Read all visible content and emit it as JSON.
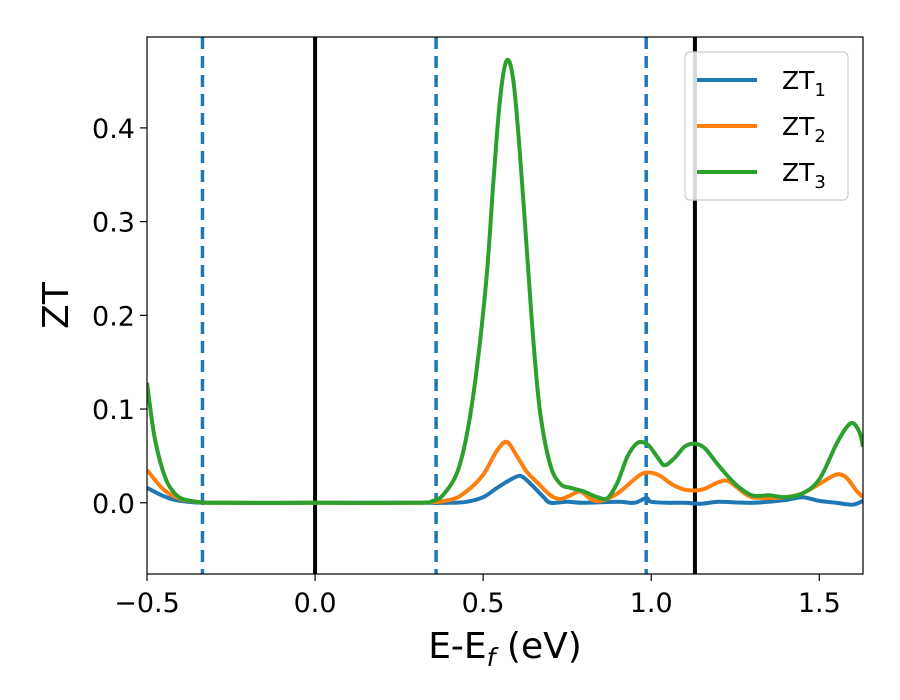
{
  "chart_data": {
    "type": "line",
    "xlabel": {
      "main": "E-E",
      "sub": "f",
      "unit": " (eV)"
    },
    "ylabel": "ZT",
    "xlim": [
      -0.5,
      1.63
    ],
    "ylim": [
      -0.076,
      0.497
    ],
    "grid": false,
    "legend_position": "top-right",
    "x_ticks": [
      {
        "value": -0.5,
        "label": "−0.5"
      },
      {
        "value": 0.0,
        "label": "0.0"
      },
      {
        "value": 0.5,
        "label": "0.5"
      },
      {
        "value": 1.0,
        "label": "1.0"
      },
      {
        "value": 1.5,
        "label": "1.5"
      }
    ],
    "y_ticks": [
      {
        "value": 0.0,
        "label": "0.0"
      },
      {
        "value": 0.1,
        "label": "0.1"
      },
      {
        "value": 0.2,
        "label": "0.2"
      },
      {
        "value": 0.3,
        "label": "0.3"
      },
      {
        "value": 0.4,
        "label": "0.4"
      }
    ],
    "vertical_lines": [
      {
        "x": -0.335,
        "style": "dashed",
        "color": "#1f77b4"
      },
      {
        "x": 0.0,
        "style": "solid",
        "color": "#000000"
      },
      {
        "x": 0.36,
        "style": "dashed",
        "color": "#1f77b4"
      },
      {
        "x": 0.985,
        "style": "dashed",
        "color": "#1f77b4"
      },
      {
        "x": 1.13,
        "style": "solid",
        "color": "#000000"
      }
    ],
    "series": [
      {
        "name": "ZT",
        "subscript": "1",
        "color": "#1f77b4",
        "points": [
          [
            -0.5,
            0.016
          ],
          [
            -0.45,
            0.007
          ],
          [
            -0.4,
            0.002
          ],
          [
            -0.3,
            0.0
          ],
          [
            0.0,
            0.0
          ],
          [
            0.3,
            0.0
          ],
          [
            0.4,
            0.0
          ],
          [
            0.45,
            0.001
          ],
          [
            0.5,
            0.006
          ],
          [
            0.55,
            0.018
          ],
          [
            0.6,
            0.028
          ],
          [
            0.62,
            0.027
          ],
          [
            0.65,
            0.017
          ],
          [
            0.68,
            0.006
          ],
          [
            0.7,
            0.0
          ],
          [
            0.75,
            0.001
          ],
          [
            0.8,
            0.0
          ],
          [
            0.9,
            0.001
          ],
          [
            0.95,
            0.0
          ],
          [
            0.985,
            0.005
          ],
          [
            1.0,
            0.001
          ],
          [
            1.05,
            0.0
          ],
          [
            1.1,
            0.0
          ],
          [
            1.15,
            -0.001
          ],
          [
            1.2,
            0.001
          ],
          [
            1.3,
            0.0
          ],
          [
            1.4,
            0.003
          ],
          [
            1.45,
            0.006
          ],
          [
            1.5,
            0.002
          ],
          [
            1.55,
            0.0
          ],
          [
            1.6,
            -0.002
          ],
          [
            1.63,
            0.002
          ]
        ]
      },
      {
        "name": "ZT",
        "subscript": "2",
        "color": "#ff7f0e",
        "points": [
          [
            -0.5,
            0.035
          ],
          [
            -0.45,
            0.014
          ],
          [
            -0.4,
            0.004
          ],
          [
            -0.35,
            0.001
          ],
          [
            -0.3,
            0.0
          ],
          [
            0.0,
            0.0
          ],
          [
            0.3,
            0.0
          ],
          [
            0.4,
            0.003
          ],
          [
            0.45,
            0.012
          ],
          [
            0.5,
            0.03
          ],
          [
            0.54,
            0.055
          ],
          [
            0.57,
            0.065
          ],
          [
            0.6,
            0.05
          ],
          [
            0.63,
            0.033
          ],
          [
            0.66,
            0.022
          ],
          [
            0.7,
            0.008
          ],
          [
            0.73,
            0.004
          ],
          [
            0.76,
            0.008
          ],
          [
            0.79,
            0.012
          ],
          [
            0.82,
            0.004
          ],
          [
            0.85,
            0.002
          ],
          [
            0.9,
            0.01
          ],
          [
            0.95,
            0.025
          ],
          [
            0.98,
            0.032
          ],
          [
            1.02,
            0.03
          ],
          [
            1.06,
            0.02
          ],
          [
            1.1,
            0.014
          ],
          [
            1.15,
            0.014
          ],
          [
            1.2,
            0.022
          ],
          [
            1.23,
            0.023
          ],
          [
            1.27,
            0.012
          ],
          [
            1.3,
            0.006
          ],
          [
            1.35,
            0.005
          ],
          [
            1.4,
            0.006
          ],
          [
            1.45,
            0.01
          ],
          [
            1.5,
            0.02
          ],
          [
            1.55,
            0.03
          ],
          [
            1.58,
            0.027
          ],
          [
            1.61,
            0.013
          ],
          [
            1.63,
            0.006
          ]
        ]
      },
      {
        "name": "ZT",
        "subscript": "3",
        "color": "#2ca02c",
        "points": [
          [
            -0.5,
            0.128
          ],
          [
            -0.48,
            0.075
          ],
          [
            -0.46,
            0.043
          ],
          [
            -0.44,
            0.022
          ],
          [
            -0.42,
            0.011
          ],
          [
            -0.4,
            0.005
          ],
          [
            -0.37,
            0.002
          ],
          [
            -0.3,
            0.0
          ],
          [
            0.0,
            0.0
          ],
          [
            0.3,
            0.0
          ],
          [
            0.35,
            0.002
          ],
          [
            0.38,
            0.008
          ],
          [
            0.42,
            0.03
          ],
          [
            0.45,
            0.07
          ],
          [
            0.48,
            0.14
          ],
          [
            0.51,
            0.24
          ],
          [
            0.53,
            0.34
          ],
          [
            0.55,
            0.43
          ],
          [
            0.57,
            0.472
          ],
          [
            0.59,
            0.45
          ],
          [
            0.61,
            0.37
          ],
          [
            0.63,
            0.27
          ],
          [
            0.65,
            0.17
          ],
          [
            0.67,
            0.095
          ],
          [
            0.7,
            0.04
          ],
          [
            0.73,
            0.02
          ],
          [
            0.76,
            0.016
          ],
          [
            0.8,
            0.012
          ],
          [
            0.84,
            0.006
          ],
          [
            0.87,
            0.005
          ],
          [
            0.9,
            0.022
          ],
          [
            0.93,
            0.05
          ],
          [
            0.96,
            0.064
          ],
          [
            0.99,
            0.062
          ],
          [
            1.02,
            0.048
          ],
          [
            1.04,
            0.04
          ],
          [
            1.07,
            0.048
          ],
          [
            1.1,
            0.06
          ],
          [
            1.13,
            0.063
          ],
          [
            1.16,
            0.058
          ],
          [
            1.2,
            0.04
          ],
          [
            1.25,
            0.02
          ],
          [
            1.3,
            0.008
          ],
          [
            1.35,
            0.008
          ],
          [
            1.4,
            0.006
          ],
          [
            1.45,
            0.01
          ],
          [
            1.5,
            0.025
          ],
          [
            1.55,
            0.062
          ],
          [
            1.58,
            0.08
          ],
          [
            1.6,
            0.085
          ],
          [
            1.62,
            0.075
          ],
          [
            1.63,
            0.06
          ]
        ]
      }
    ]
  }
}
